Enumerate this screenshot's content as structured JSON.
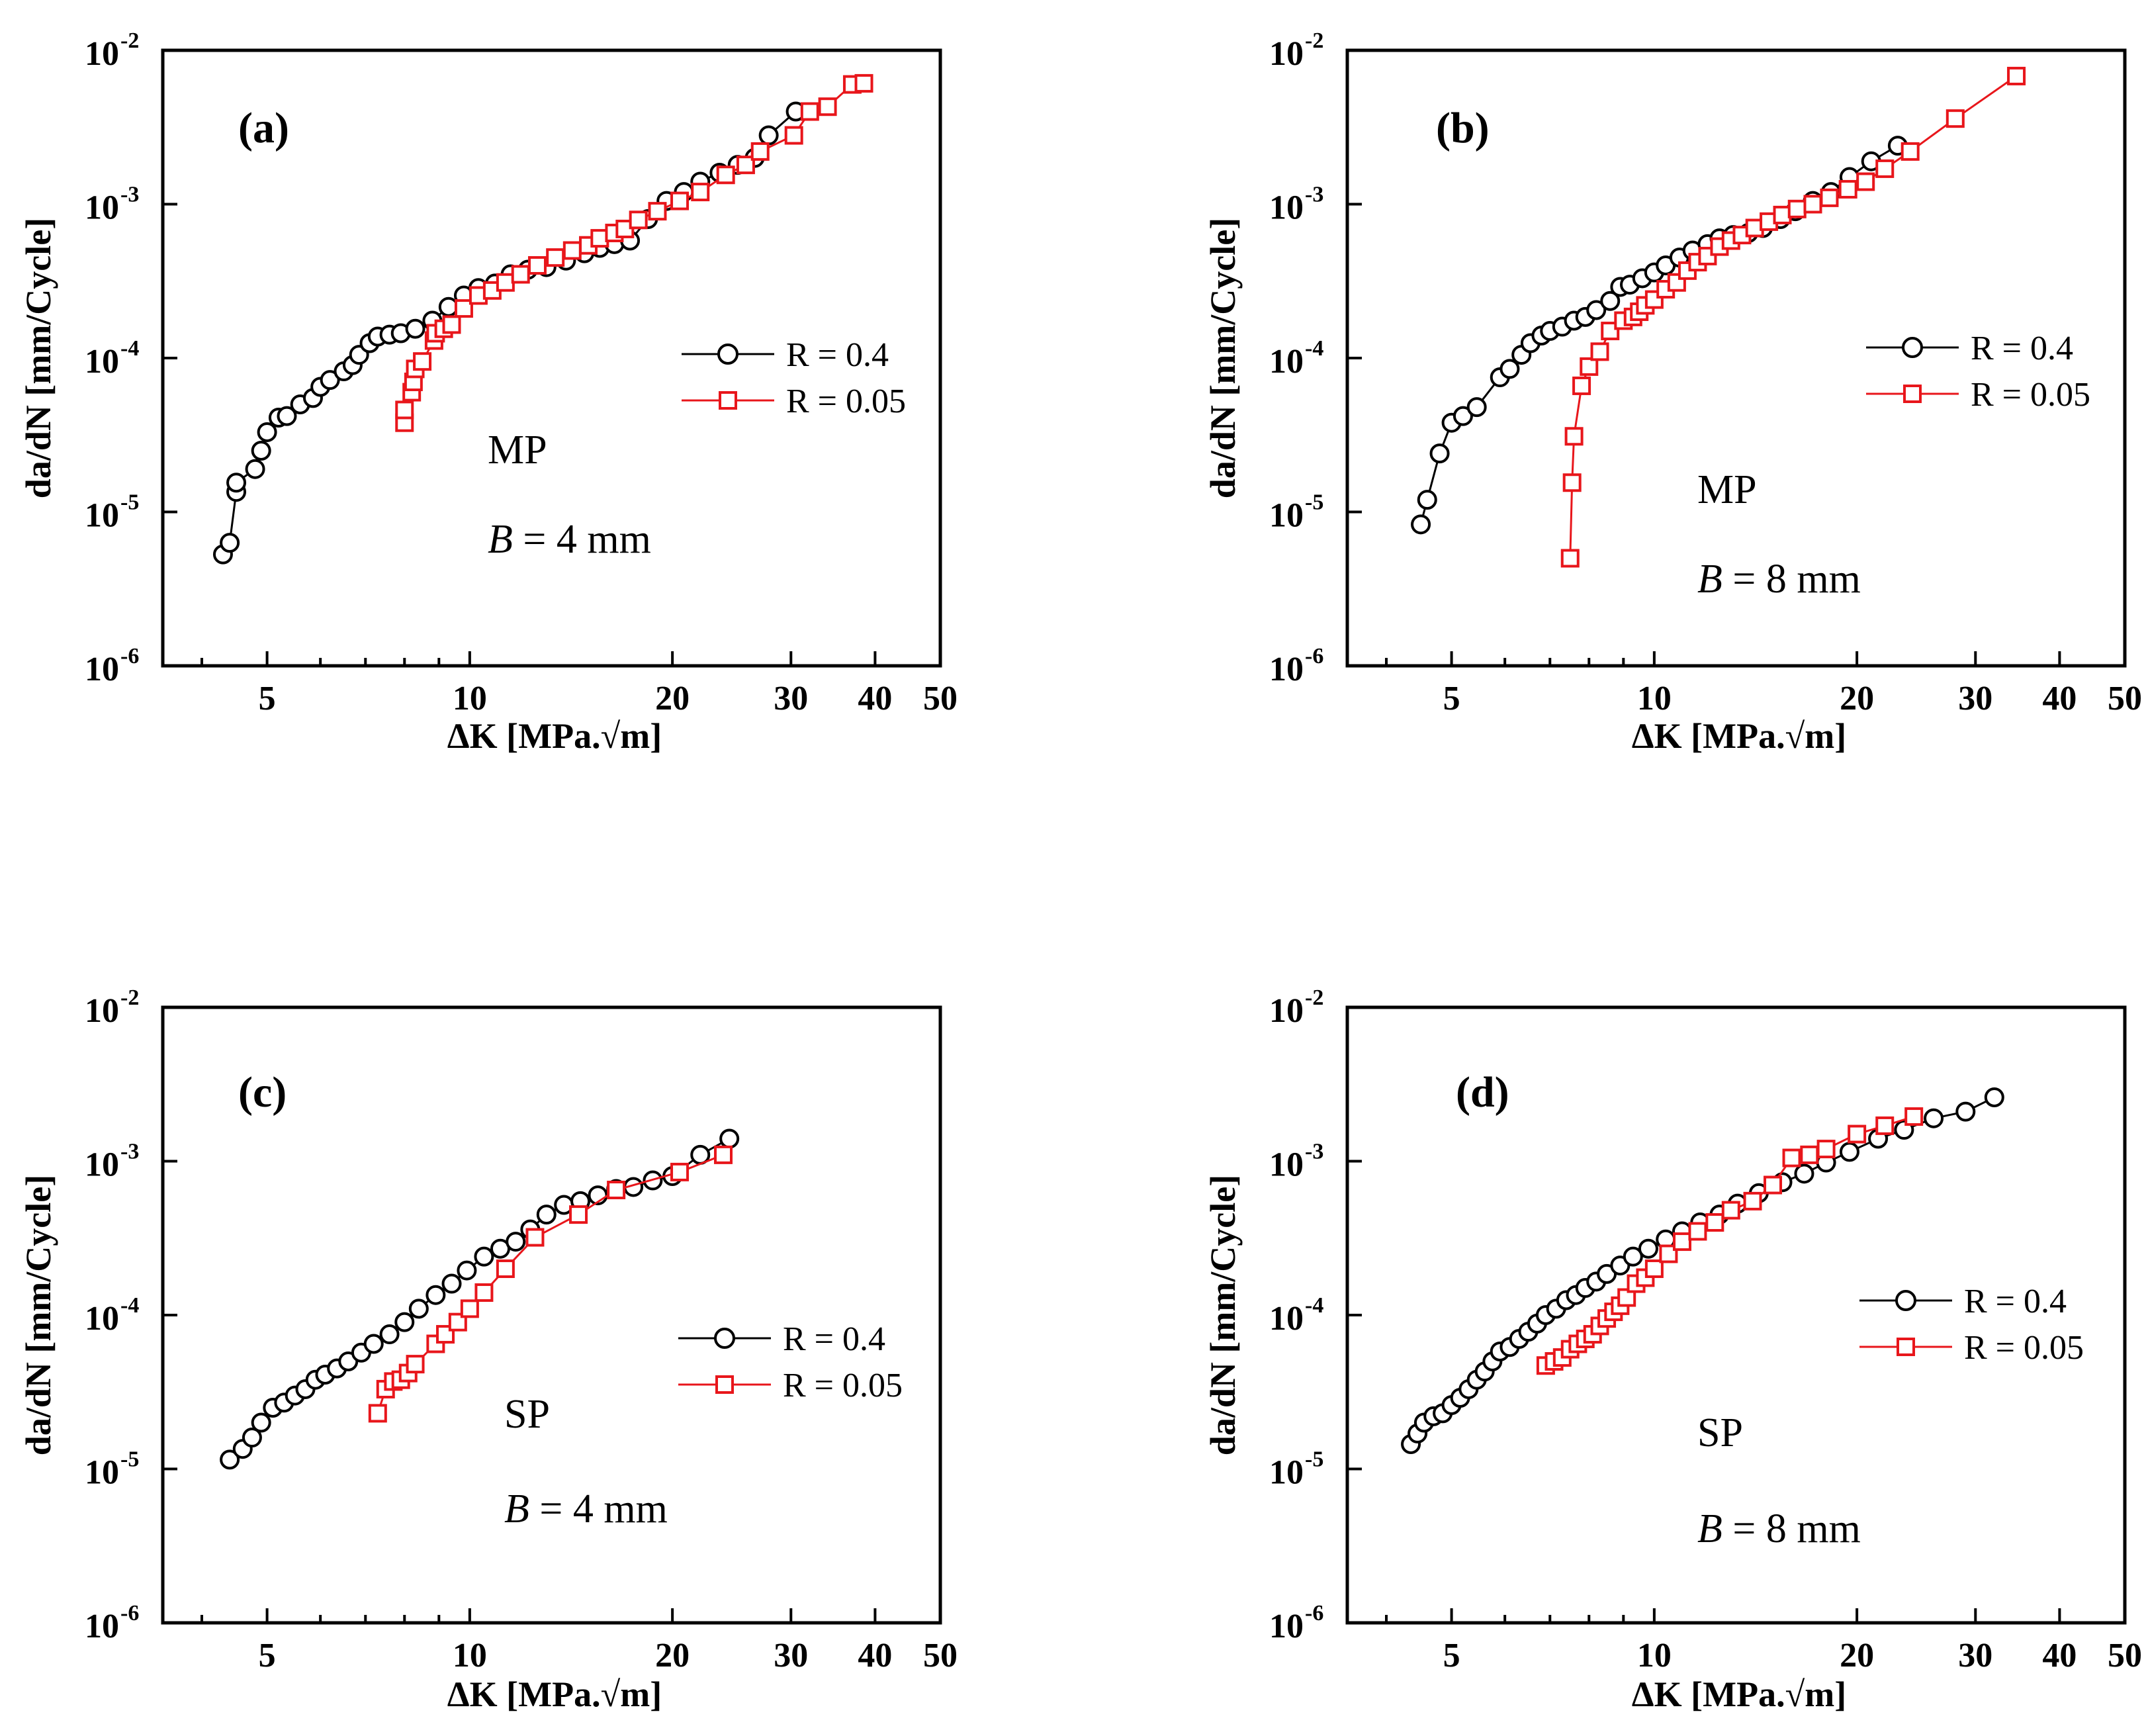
{
  "chart_data": [
    {
      "type": "scatter",
      "panel_label": "(a)",
      "material": "MP",
      "thickness_label": "B",
      "thickness_value": " = 4 mm",
      "xlabel": "ΔK [MPa.√m]",
      "ylabel": "da/dN [mm/Cycle]",
      "xscale": "log",
      "yscale": "log",
      "xlim": [
        3.5,
        50
      ],
      "ylim": [
        1e-06,
        0.01
      ],
      "xticks": [
        "5",
        "10",
        "20",
        "30",
        "40",
        "50"
      ],
      "yticks": [
        "10",
        "10",
        "10",
        "10",
        "10"
      ],
      "ytick_exponents": [
        "-6",
        "-5",
        "-4",
        "-3",
        "-2"
      ],
      "legend_position": "center-right",
      "series": [
        {
          "name": "R = 0.4",
          "marker": "circle",
          "color": "#000000",
          "x": [
            4.3,
            4.4,
            4.5,
            4.5,
            4.8,
            4.9,
            5.0,
            5.2,
            5.35,
            5.6,
            5.85,
            6.0,
            6.2,
            6.5,
            6.7,
            6.85,
            7.1,
            7.3,
            7.6,
            7.9,
            8.3,
            8.8,
            9.3,
            9.8,
            10.3,
            10.9,
            11.5,
            12.2,
            13.0,
            13.9,
            14.8,
            15.6,
            16.4,
            17.3,
            18.4,
            19.6,
            20.8,
            22.0,
            23.5,
            25.0,
            26.5,
            27.8,
            30.5
          ],
          "y": [
            5.3e-06,
            6.3e-06,
            1.35e-05,
            1.55e-05,
            1.9e-05,
            2.5e-05,
            3.3e-05,
            4.1e-05,
            4.2e-05,
            5e-05,
            5.5e-05,
            6.5e-05,
            7.2e-05,
            8.2e-05,
            9e-05,
            0.000105,
            0.000125,
            0.000138,
            0.000142,
            0.000145,
            0.000155,
            0.000175,
            0.000215,
            0.000255,
            0.000285,
            0.000305,
            0.00035,
            0.000375,
            0.00039,
            0.00043,
            0.00048,
            0.00052,
            0.00055,
            0.00058,
            0.0008,
            0.00105,
            0.0012,
            0.0014,
            0.0016,
            0.0018,
            0.002,
            0.0028,
            0.004
          ]
        },
        {
          "name": "R = 0.05",
          "marker": "square",
          "color": "#e8161b",
          "x": [
            8.0,
            8.0,
            8.2,
            8.25,
            8.3,
            8.5,
            8.85,
            8.9,
            9.15,
            9.4,
            9.8,
            10.3,
            10.8,
            11.3,
            11.9,
            12.6,
            13.4,
            14.2,
            15.0,
            15.6,
            16.4,
            17.0,
            17.8,
            19.0,
            20.5,
            22.0,
            24.0,
            25.7,
            27.0,
            30.3,
            32.0,
            34.0,
            37.0,
            38.5
          ],
          "y": [
            3.8e-05,
            4.6e-05,
            6e-05,
            7e-05,
            8.5e-05,
            9.5e-05,
            0.00013,
            0.000145,
            0.000155,
            0.000165,
            0.00021,
            0.000255,
            0.000275,
            0.00031,
            0.00035,
            0.0004,
            0.00045,
            0.0005,
            0.00054,
            0.0006,
            0.00065,
            0.00069,
            0.00079,
            0.0009,
            0.00105,
            0.0012,
            0.00155,
            0.0018,
            0.0022,
            0.0028,
            0.004,
            0.0043,
            0.006,
            0.0061
          ]
        }
      ]
    },
    {
      "type": "scatter",
      "panel_label": "(b)",
      "material": "MP",
      "thickness_label": "B",
      "thickness_value": " = 8 mm",
      "xlabel": "ΔK [MPa.√m]",
      "ylabel": "da/dN [mm/Cycle]",
      "xscale": "log",
      "yscale": "log",
      "xlim": [
        3.5,
        50
      ],
      "ylim": [
        1e-06,
        0.01
      ],
      "xticks": [
        "5",
        "10",
        "20",
        "30",
        "40",
        "50"
      ],
      "yticks": [
        "10",
        "10",
        "10",
        "10",
        "10"
      ],
      "ytick_exponents": [
        "-6",
        "-5",
        "-4",
        "-3",
        "-2"
      ],
      "legend_position": "top-right",
      "series": [
        {
          "name": "R = 0.4",
          "marker": "circle",
          "color": "#000000",
          "x": [
            4.5,
            4.6,
            4.8,
            5.0,
            5.2,
            5.45,
            5.9,
            6.1,
            6.35,
            6.55,
            6.8,
            7.0,
            7.3,
            7.6,
            7.9,
            8.2,
            8.6,
            8.9,
            9.2,
            9.6,
            10.0,
            10.4,
            10.9,
            11.4,
            12.0,
            12.5,
            13.1,
            13.8,
            14.5,
            15.4,
            16.2,
            17.2,
            18.3,
            19.5,
            21.0,
            23.0
          ],
          "y": [
            8.3e-06,
            1.2e-05,
            2.4e-05,
            3.8e-05,
            4.2e-05,
            4.8e-05,
            7.5e-05,
            8.5e-05,
            0.000105,
            0.000125,
            0.00014,
            0.00015,
            0.00016,
            0.000175,
            0.000185,
            0.000205,
            0.000235,
            0.00029,
            0.0003,
            0.00033,
            0.00036,
            0.0004,
            0.00045,
            0.0005,
            0.00055,
            0.0006,
            0.00063,
            0.00065,
            0.0007,
            0.0008,
            0.0009,
            0.00105,
            0.0012,
            0.0015,
            0.0019,
            0.0024
          ]
        },
        {
          "name": "R = 0.05",
          "marker": "square",
          "color": "#e8161b",
          "x": [
            7.5,
            7.55,
            7.6,
            7.8,
            8.0,
            8.3,
            8.6,
            9.0,
            9.3,
            9.5,
            9.7,
            10.0,
            10.4,
            10.8,
            11.2,
            11.6,
            12.0,
            12.5,
            13.0,
            13.5,
            14.1,
            14.8,
            15.5,
            16.3,
            17.2,
            18.2,
            19.4,
            20.6,
            22.0,
            24.0,
            28.0,
            34.5
          ],
          "y": [
            5e-06,
            1.55e-05,
            3.1e-05,
            6.6e-05,
            8.8e-05,
            0.00011,
            0.00015,
            0.000175,
            0.000185,
            0.0002,
            0.00022,
            0.00024,
            0.00028,
            0.00031,
            0.00037,
            0.00042,
            0.00046,
            0.00053,
            0.00058,
            0.00063,
            0.0007,
            0.00077,
            0.00085,
            0.00093,
            0.001,
            0.0011,
            0.00125,
            0.0014,
            0.0017,
            0.0022,
            0.0036,
            0.0068
          ]
        }
      ]
    },
    {
      "type": "scatter",
      "panel_label": "(c)",
      "material": "SP",
      "thickness_label": "B",
      "thickness_value": " = 4 mm",
      "xlabel": "ΔK [MPa.√m]",
      "ylabel": "da/dN [mm/Cycle]",
      "xscale": "log",
      "yscale": "log",
      "xlim": [
        3.5,
        50
      ],
      "ylim": [
        1e-06,
        0.01
      ],
      "xticks": [
        "5",
        "10",
        "20",
        "30",
        "40",
        "50"
      ],
      "yticks": [
        "10",
        "10",
        "10",
        "10",
        "10"
      ],
      "ytick_exponents": [
        "-6",
        "-5",
        "-4",
        "-3",
        "-2"
      ],
      "legend_position": "center-right",
      "series": [
        {
          "name": "R = 0.4",
          "marker": "circle",
          "color": "#000000",
          "x": [
            4.4,
            4.6,
            4.75,
            4.9,
            5.1,
            5.3,
            5.5,
            5.7,
            5.9,
            6.1,
            6.35,
            6.6,
            6.9,
            7.2,
            7.6,
            8.0,
            8.4,
            8.9,
            9.4,
            9.9,
            10.5,
            11.1,
            11.7,
            12.3,
            13.0,
            13.8,
            14.6,
            15.5,
            16.5,
            17.5,
            18.7,
            20.0,
            22.0,
            24.3
          ],
          "y": [
            1.15e-05,
            1.35e-05,
            1.6e-05,
            2e-05,
            2.5e-05,
            2.7e-05,
            3e-05,
            3.3e-05,
            3.8e-05,
            4.1e-05,
            4.5e-05,
            5e-05,
            5.7e-05,
            6.5e-05,
            7.5e-05,
            9e-05,
            0.00011,
            0.000135,
            0.00016,
            0.000195,
            0.00024,
            0.00027,
            0.0003,
            0.00036,
            0.00045,
            0.00052,
            0.00055,
            0.0006,
            0.00066,
            0.00068,
            0.00075,
            0.0008,
            0.0011,
            0.0014
          ]
        },
        {
          "name": "R = 0.05",
          "marker": "square",
          "color": "#e8161b",
          "x": [
            7.3,
            7.5,
            7.7,
            7.9,
            8.1,
            8.3,
            8.9,
            9.2,
            9.6,
            10.0,
            10.5,
            11.3,
            12.5,
            14.5,
            16.5,
            20.5,
            23.8
          ],
          "y": [
            2.3e-05,
            3.3e-05,
            3.7e-05,
            3.8e-05,
            4.2e-05,
            4.8e-05,
            6.5e-05,
            7.5e-05,
            9e-05,
            0.00011,
            0.00014,
            0.0002,
            0.00032,
            0.00045,
            0.00065,
            0.00085,
            0.0011
          ]
        }
      ]
    },
    {
      "type": "scatter",
      "panel_label": "(d)",
      "material": "SP",
      "thickness_label": "B",
      "thickness_value": " = 8 mm",
      "xlabel": "ΔK [MPa.√m]",
      "ylabel": "da/dN [mm/Cycle]",
      "xscale": "log",
      "yscale": "log",
      "xlim": [
        3.5,
        50
      ],
      "ylim": [
        1e-06,
        0.01
      ],
      "xticks": [
        "5",
        "10",
        "20",
        "30",
        "40",
        "50"
      ],
      "yticks": [
        "10",
        "10",
        "10",
        "10",
        "10"
      ],
      "ytick_exponents": [
        "-6",
        "-5",
        "-4",
        "-3",
        "-2"
      ],
      "legend_position": "center-right",
      "series": [
        {
          "name": "R = 0.4",
          "marker": "circle",
          "color": "#000000",
          "x": [
            4.35,
            4.45,
            4.55,
            4.7,
            4.85,
            5.0,
            5.15,
            5.3,
            5.45,
            5.6,
            5.75,
            5.9,
            6.1,
            6.3,
            6.5,
            6.7,
            6.9,
            7.15,
            7.4,
            7.65,
            7.9,
            8.2,
            8.5,
            8.9,
            9.3,
            9.8,
            10.4,
            11.0,
            11.7,
            12.5,
            13.3,
            14.3,
            15.5,
            16.7,
            18.0,
            19.5,
            21.5,
            23.5,
            26.0,
            29.0,
            32.0
          ],
          "y": [
            1.45e-05,
            1.7e-05,
            2e-05,
            2.2e-05,
            2.3e-05,
            2.6e-05,
            2.9e-05,
            3.3e-05,
            3.8e-05,
            4.3e-05,
            5e-05,
            5.8e-05,
            6.2e-05,
            7e-05,
            7.8e-05,
            8.8e-05,
            0.0001,
            0.00011,
            0.000125,
            0.000135,
            0.00015,
            0.000165,
            0.000185,
            0.00021,
            0.00024,
            0.00027,
            0.00031,
            0.00035,
            0.0004,
            0.00045,
            0.00053,
            0.00062,
            0.00073,
            0.00083,
            0.00098,
            0.00115,
            0.0014,
            0.0016,
            0.0019,
            0.0021,
            0.0026
          ]
        },
        {
          "name": "R = 0.05",
          "marker": "square",
          "color": "#e8161b",
          "x": [
            6.9,
            7.1,
            7.3,
            7.5,
            7.7,
            7.9,
            8.1,
            8.3,
            8.5,
            8.7,
            8.9,
            9.1,
            9.4,
            9.7,
            10.0,
            10.5,
            11.0,
            11.6,
            12.3,
            13.0,
            14.0,
            15.0,
            16.0,
            17.0,
            18.0,
            20.0,
            22.0,
            24.3
          ],
          "y": [
            4.7e-05,
            5e-05,
            5.3e-05,
            6e-05,
            6.5e-05,
            7e-05,
            7.5e-05,
            8.5e-05,
            9.5e-05,
            0.000105,
            0.000115,
            0.00013,
            0.00016,
            0.000175,
            0.0002,
            0.00025,
            0.0003,
            0.00035,
            0.0004,
            0.00048,
            0.00055,
            0.0007,
            0.00105,
            0.0011,
            0.0012,
            0.0015,
            0.0017,
            0.00195
          ]
        }
      ]
    }
  ]
}
